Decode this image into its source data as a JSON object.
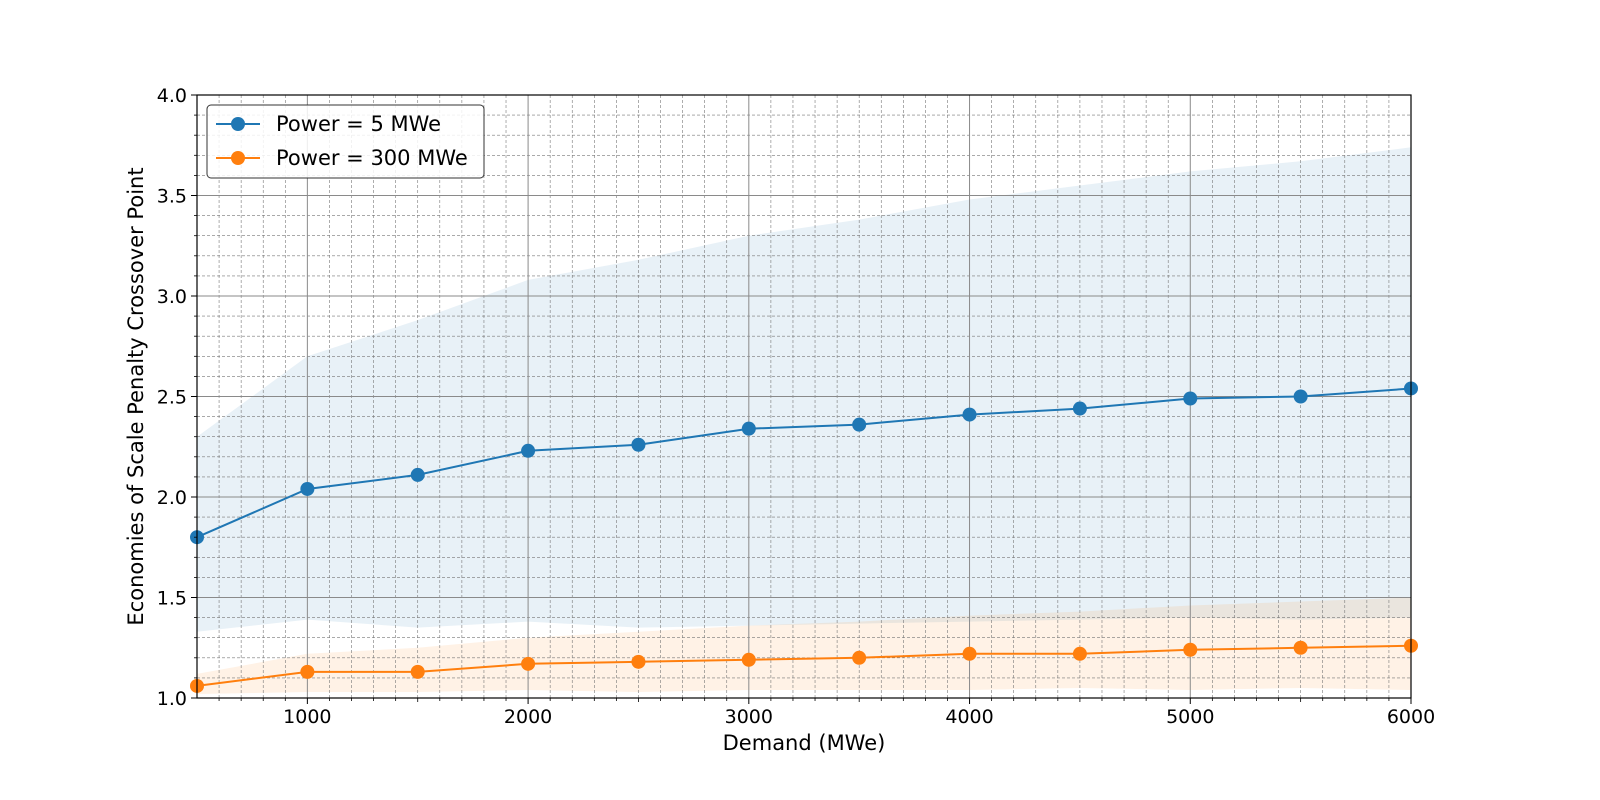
{
  "chart_data": {
    "type": "line",
    "title": "",
    "xlabel": "Demand (MWe)",
    "ylabel": "Economies of Scale Penalty Crossover Point",
    "xlim": [
      500,
      6000
    ],
    "ylim": [
      1.0,
      4.0
    ],
    "x_ticks": [
      1000,
      2000,
      3000,
      4000,
      5000,
      6000
    ],
    "y_ticks": [
      "1.0",
      "1.5",
      "2.0",
      "2.5",
      "3.0",
      "3.5",
      "4.0"
    ],
    "grid": true,
    "minor_grid": true,
    "legend_position": "upper-left",
    "series": [
      {
        "name": "Power = 5 MWe",
        "color": "#1f77b4",
        "marker": "circle",
        "x": [
          500,
          1000,
          1500,
          2000,
          2500,
          3000,
          3500,
          4000,
          4500,
          5000,
          5500,
          6000
        ],
        "y": [
          1.8,
          2.04,
          2.11,
          2.23,
          2.26,
          2.34,
          2.36,
          2.41,
          2.44,
          2.49,
          2.5,
          2.54
        ],
        "band_upper": [
          2.3,
          2.7,
          2.88,
          3.08,
          3.18,
          3.3,
          3.38,
          3.48,
          3.55,
          3.62,
          3.67,
          3.74
        ],
        "band_lower": [
          1.33,
          1.39,
          1.35,
          1.38,
          1.35,
          1.36,
          1.37,
          1.38,
          1.39,
          1.4,
          1.39,
          1.4
        ]
      },
      {
        "name": "Power = 300 MWe",
        "color": "#ff7f0e",
        "marker": "circle",
        "x": [
          500,
          1000,
          1500,
          2000,
          2500,
          3000,
          3500,
          4000,
          4500,
          5000,
          5500,
          6000
        ],
        "y": [
          1.06,
          1.13,
          1.13,
          1.17,
          1.18,
          1.19,
          1.2,
          1.22,
          1.22,
          1.24,
          1.25,
          1.26
        ],
        "band_upper": [
          1.12,
          1.22,
          1.25,
          1.3,
          1.33,
          1.36,
          1.38,
          1.41,
          1.43,
          1.46,
          1.48,
          1.5
        ],
        "band_lower": [
          1.02,
          1.03,
          1.03,
          1.04,
          1.03,
          1.04,
          1.04,
          1.04,
          1.05,
          1.04,
          1.05,
          1.04
        ]
      }
    ]
  }
}
